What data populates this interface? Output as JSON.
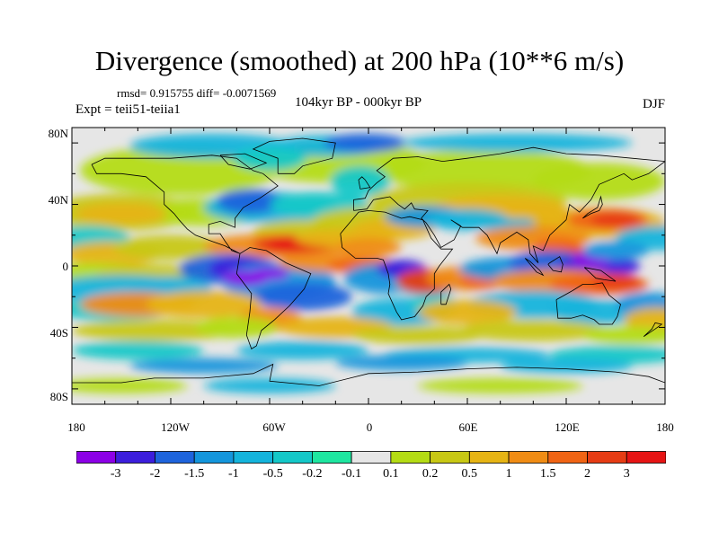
{
  "title": "Divergence (smoothed) at 200 hPa (10**6 m/s)",
  "stats": "rmsd= 0.915755 diff= -0.0071569",
  "period": "104kyr BP - 000kyr BP",
  "experiment": "Expt = teii51-teiia1",
  "season": "DJF",
  "lat_labels": [
    "80N",
    "40N",
    "0",
    "40S",
    "80S"
  ],
  "lon_labels": [
    "180",
    "120W",
    "60W",
    "0",
    "60E",
    "120E",
    "180"
  ],
  "colorbar": {
    "labels": [
      "-3",
      "-2",
      "-1.5",
      "-1",
      "-0.5",
      "-0.2",
      "-0.1",
      "0.1",
      "0.2",
      "0.5",
      "1",
      "1.5",
      "2",
      "3"
    ],
    "colors": [
      "#8c00e6",
      "#3c1edc",
      "#1e64dc",
      "#1496dc",
      "#14b4dc",
      "#14c8c8",
      "#1ee6a0",
      "#e6e6e6",
      "#b4dc14",
      "#c8c814",
      "#e6b414",
      "#f08c14",
      "#f06414",
      "#e63c14",
      "#e61414"
    ]
  }
}
